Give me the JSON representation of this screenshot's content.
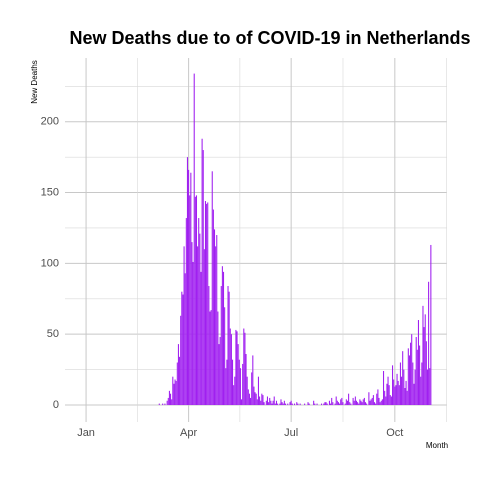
{
  "chart_data": {
    "type": "bar",
    "title": "New Deaths due to of COVID-19 in Netherlands",
    "y_label": "New Deaths",
    "x_label": "Month",
    "color": "#a020f0",
    "grid": true,
    "ylim": [
      -12,
      245
    ],
    "yticks": [
      0,
      50,
      100,
      150,
      200
    ],
    "categories": [
      "Jan",
      null,
      null,
      null,
      null,
      null,
      null,
      null,
      null,
      null,
      null,
      null,
      null,
      null,
      null,
      null,
      null,
      null,
      null,
      null,
      null,
      null,
      null,
      null,
      null,
      null,
      null,
      null,
      null,
      null,
      null,
      null,
      null,
      null,
      null,
      null,
      null,
      null,
      null,
      null,
      null,
      null,
      null,
      null,
      null,
      null,
      null,
      null,
      null,
      null,
      null,
      null,
      null,
      null,
      null,
      null,
      null,
      null,
      null,
      null,
      null,
      null,
      null,
      null,
      null,
      null,
      null,
      null,
      null,
      null,
      null,
      null,
      null,
      null,
      null,
      null,
      null,
      null,
      null,
      null,
      null,
      null,
      null,
      null,
      null,
      null,
      null,
      null,
      null,
      null,
      null,
      "Apr",
      null,
      null,
      null,
      null,
      null,
      null,
      null,
      null,
      null,
      null,
      null,
      null,
      null,
      null,
      null,
      null,
      null,
      null,
      null,
      null,
      null,
      null,
      null,
      null,
      null,
      null,
      null,
      null,
      null,
      null,
      null,
      null,
      null,
      null,
      null,
      null,
      null,
      null,
      null,
      null,
      null,
      null,
      null,
      null,
      null,
      null,
      null,
      null,
      null,
      null,
      null,
      null,
      null,
      null,
      null,
      null,
      null,
      null,
      null,
      null,
      null,
      null,
      null,
      null,
      null,
      null,
      null,
      null,
      null,
      null,
      null,
      null,
      null,
      null,
      null,
      null,
      null,
      null,
      null,
      null,
      null,
      null,
      null,
      null,
      null,
      null,
      null,
      null,
      null,
      null,
      "Jul",
      null,
      null,
      null,
      null,
      null,
      null,
      null,
      null,
      null,
      null,
      null,
      null,
      null,
      null,
      null,
      null,
      null,
      null,
      null,
      null,
      null,
      null,
      null,
      null,
      null,
      null,
      null,
      null,
      null,
      null,
      null,
      null,
      null,
      null,
      null,
      null,
      null,
      null,
      null,
      null,
      null,
      null,
      null,
      null,
      null,
      null,
      null,
      null,
      null,
      null,
      null,
      null,
      null,
      null,
      null,
      null,
      null,
      null,
      null,
      null,
      null,
      null,
      null,
      null,
      null,
      null,
      null,
      null,
      null,
      null,
      null,
      null,
      null,
      null,
      null,
      null,
      null,
      null,
      null,
      null,
      null,
      null,
      null,
      null,
      null,
      null,
      null,
      null,
      null,
      null,
      null,
      "Oct",
      null,
      null,
      null,
      null,
      null,
      null,
      null,
      null,
      null,
      null,
      null,
      null,
      null,
      null,
      null,
      null,
      null,
      null,
      null,
      null,
      null,
      null,
      null,
      null,
      null,
      null,
      null,
      null,
      null,
      null,
      null,
      null
    ],
    "values": [
      0,
      0,
      0,
      0,
      0,
      0,
      0,
      0,
      0,
      0,
      0,
      0,
      0,
      0,
      0,
      0,
      0,
      0,
      0,
      0,
      0,
      0,
      0,
      0,
      0,
      0,
      0,
      0,
      0,
      0,
      0,
      0,
      0,
      0,
      0,
      0,
      0,
      0,
      0,
      0,
      0,
      0,
      0,
      0,
      0,
      0,
      0,
      0,
      0,
      0,
      0,
      0,
      0,
      0,
      0,
      0,
      0,
      0,
      0,
      0,
      0,
      0,
      0,
      0,
      0,
      1,
      0,
      0,
      1,
      0,
      1,
      0,
      3,
      5,
      10,
      8,
      4,
      20,
      15,
      18,
      17,
      30,
      43,
      34,
      63,
      80,
      78,
      112,
      93,
      132,
      175,
      166,
      148,
      164,
      115,
      101,
      234,
      147,
      148,
      112,
      132,
      121,
      94,
      188,
      180,
      110,
      144,
      142,
      143,
      84,
      66,
      67,
      165,
      138,
      124,
      112,
      120,
      66,
      43,
      48,
      84,
      98,
      94,
      69,
      26,
      32,
      84,
      80,
      54,
      50,
      32,
      14,
      20,
      53,
      52,
      43,
      32,
      26,
      4,
      29,
      54,
      51,
      36,
      20,
      11,
      8,
      5,
      23,
      35,
      13,
      9,
      8,
      4,
      20,
      6,
      3,
      8,
      7,
      2,
      0,
      3,
      6,
      2,
      5,
      3,
      1,
      3,
      6,
      1,
      3,
      1,
      0,
      1,
      4,
      2,
      1,
      3,
      1,
      0,
      1,
      0,
      2,
      3,
      1,
      0,
      1,
      0,
      2,
      1,
      0,
      1,
      0,
      0,
      0,
      1,
      0,
      0,
      2,
      1,
      0,
      0,
      0,
      3,
      1,
      0,
      1,
      0,
      0,
      0,
      1,
      0,
      1,
      2,
      2,
      1,
      0,
      3,
      1,
      5,
      2,
      0,
      1,
      6,
      3,
      2,
      1,
      4,
      5,
      2,
      0,
      1,
      4,
      3,
      8,
      2,
      1,
      0,
      5,
      3,
      6,
      3,
      2,
      1,
      4,
      3,
      2,
      4,
      5,
      2,
      1,
      0,
      9,
      3,
      4,
      5,
      7,
      2,
      1,
      8,
      11,
      5,
      2,
      3,
      4,
      24,
      10,
      6,
      15,
      20,
      14,
      7,
      6,
      28,
      18,
      13,
      14,
      22,
      17,
      14,
      30,
      20,
      38,
      25,
      12,
      17,
      10,
      40,
      35,
      44,
      50,
      30,
      15,
      25,
      48,
      39,
      60,
      42,
      20,
      30,
      70,
      55,
      64,
      45,
      25,
      87,
      26,
      113
    ]
  }
}
